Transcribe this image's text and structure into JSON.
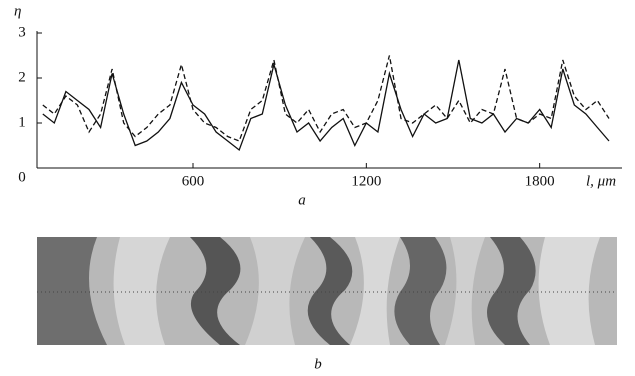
{
  "chart_data": {
    "type": "line",
    "y_label": "η",
    "x_label": "l, μm",
    "caption": "a",
    "x": [
      80,
      120,
      160,
      200,
      240,
      280,
      320,
      360,
      400,
      440,
      480,
      520,
      560,
      600,
      640,
      680,
      720,
      760,
      800,
      840,
      880,
      920,
      960,
      1000,
      1040,
      1080,
      1120,
      1160,
      1200,
      1240,
      1280,
      1320,
      1360,
      1400,
      1440,
      1480,
      1520,
      1560,
      1600,
      1640,
      1680,
      1720,
      1760,
      1800,
      1840,
      1880,
      1920,
      1960,
      2000,
      2040
    ],
    "series": [
      {
        "color": "#111",
        "line_style": "solid",
        "values": [
          1.2,
          1.0,
          1.7,
          1.5,
          1.3,
          0.9,
          2.1,
          1.2,
          0.5,
          0.6,
          0.8,
          1.1,
          1.9,
          1.4,
          1.2,
          0.8,
          0.6,
          0.4,
          1.1,
          1.2,
          2.3,
          1.4,
          0.8,
          1.0,
          0.6,
          0.9,
          1.1,
          0.5,
          1.0,
          0.8,
          2.1,
          1.3,
          0.7,
          1.2,
          1.0,
          1.1,
          2.4,
          1.1,
          1.0,
          1.2,
          0.8,
          1.1,
          1.0,
          1.3,
          0.9,
          2.2,
          1.4,
          1.2,
          0.9,
          0.6
        ]
      },
      {
        "color": "#111",
        "line_style": "dashed",
        "values": [
          1.4,
          1.2,
          1.6,
          1.4,
          0.8,
          1.2,
          2.2,
          1.0,
          0.7,
          0.9,
          1.2,
          1.4,
          2.3,
          1.3,
          1.0,
          0.9,
          0.7,
          0.6,
          1.3,
          1.5,
          2.4,
          1.2,
          1.0,
          1.3,
          0.8,
          1.2,
          1.3,
          0.9,
          1.0,
          1.5,
          2.5,
          1.1,
          1.0,
          1.2,
          1.4,
          1.1,
          1.5,
          1.0,
          1.3,
          1.2,
          2.2,
          1.1,
          1.0,
          1.2,
          1.1,
          2.4,
          1.6,
          1.3,
          1.5,
          1.1
        ]
      }
    ],
    "xlim": [
      60,
      2085
    ],
    "xticks": [
      600,
      1200,
      1800
    ],
    "ylim": [
      0,
      3
    ],
    "yticks": [
      0,
      1,
      2,
      3
    ]
  },
  "image_caption": "b"
}
